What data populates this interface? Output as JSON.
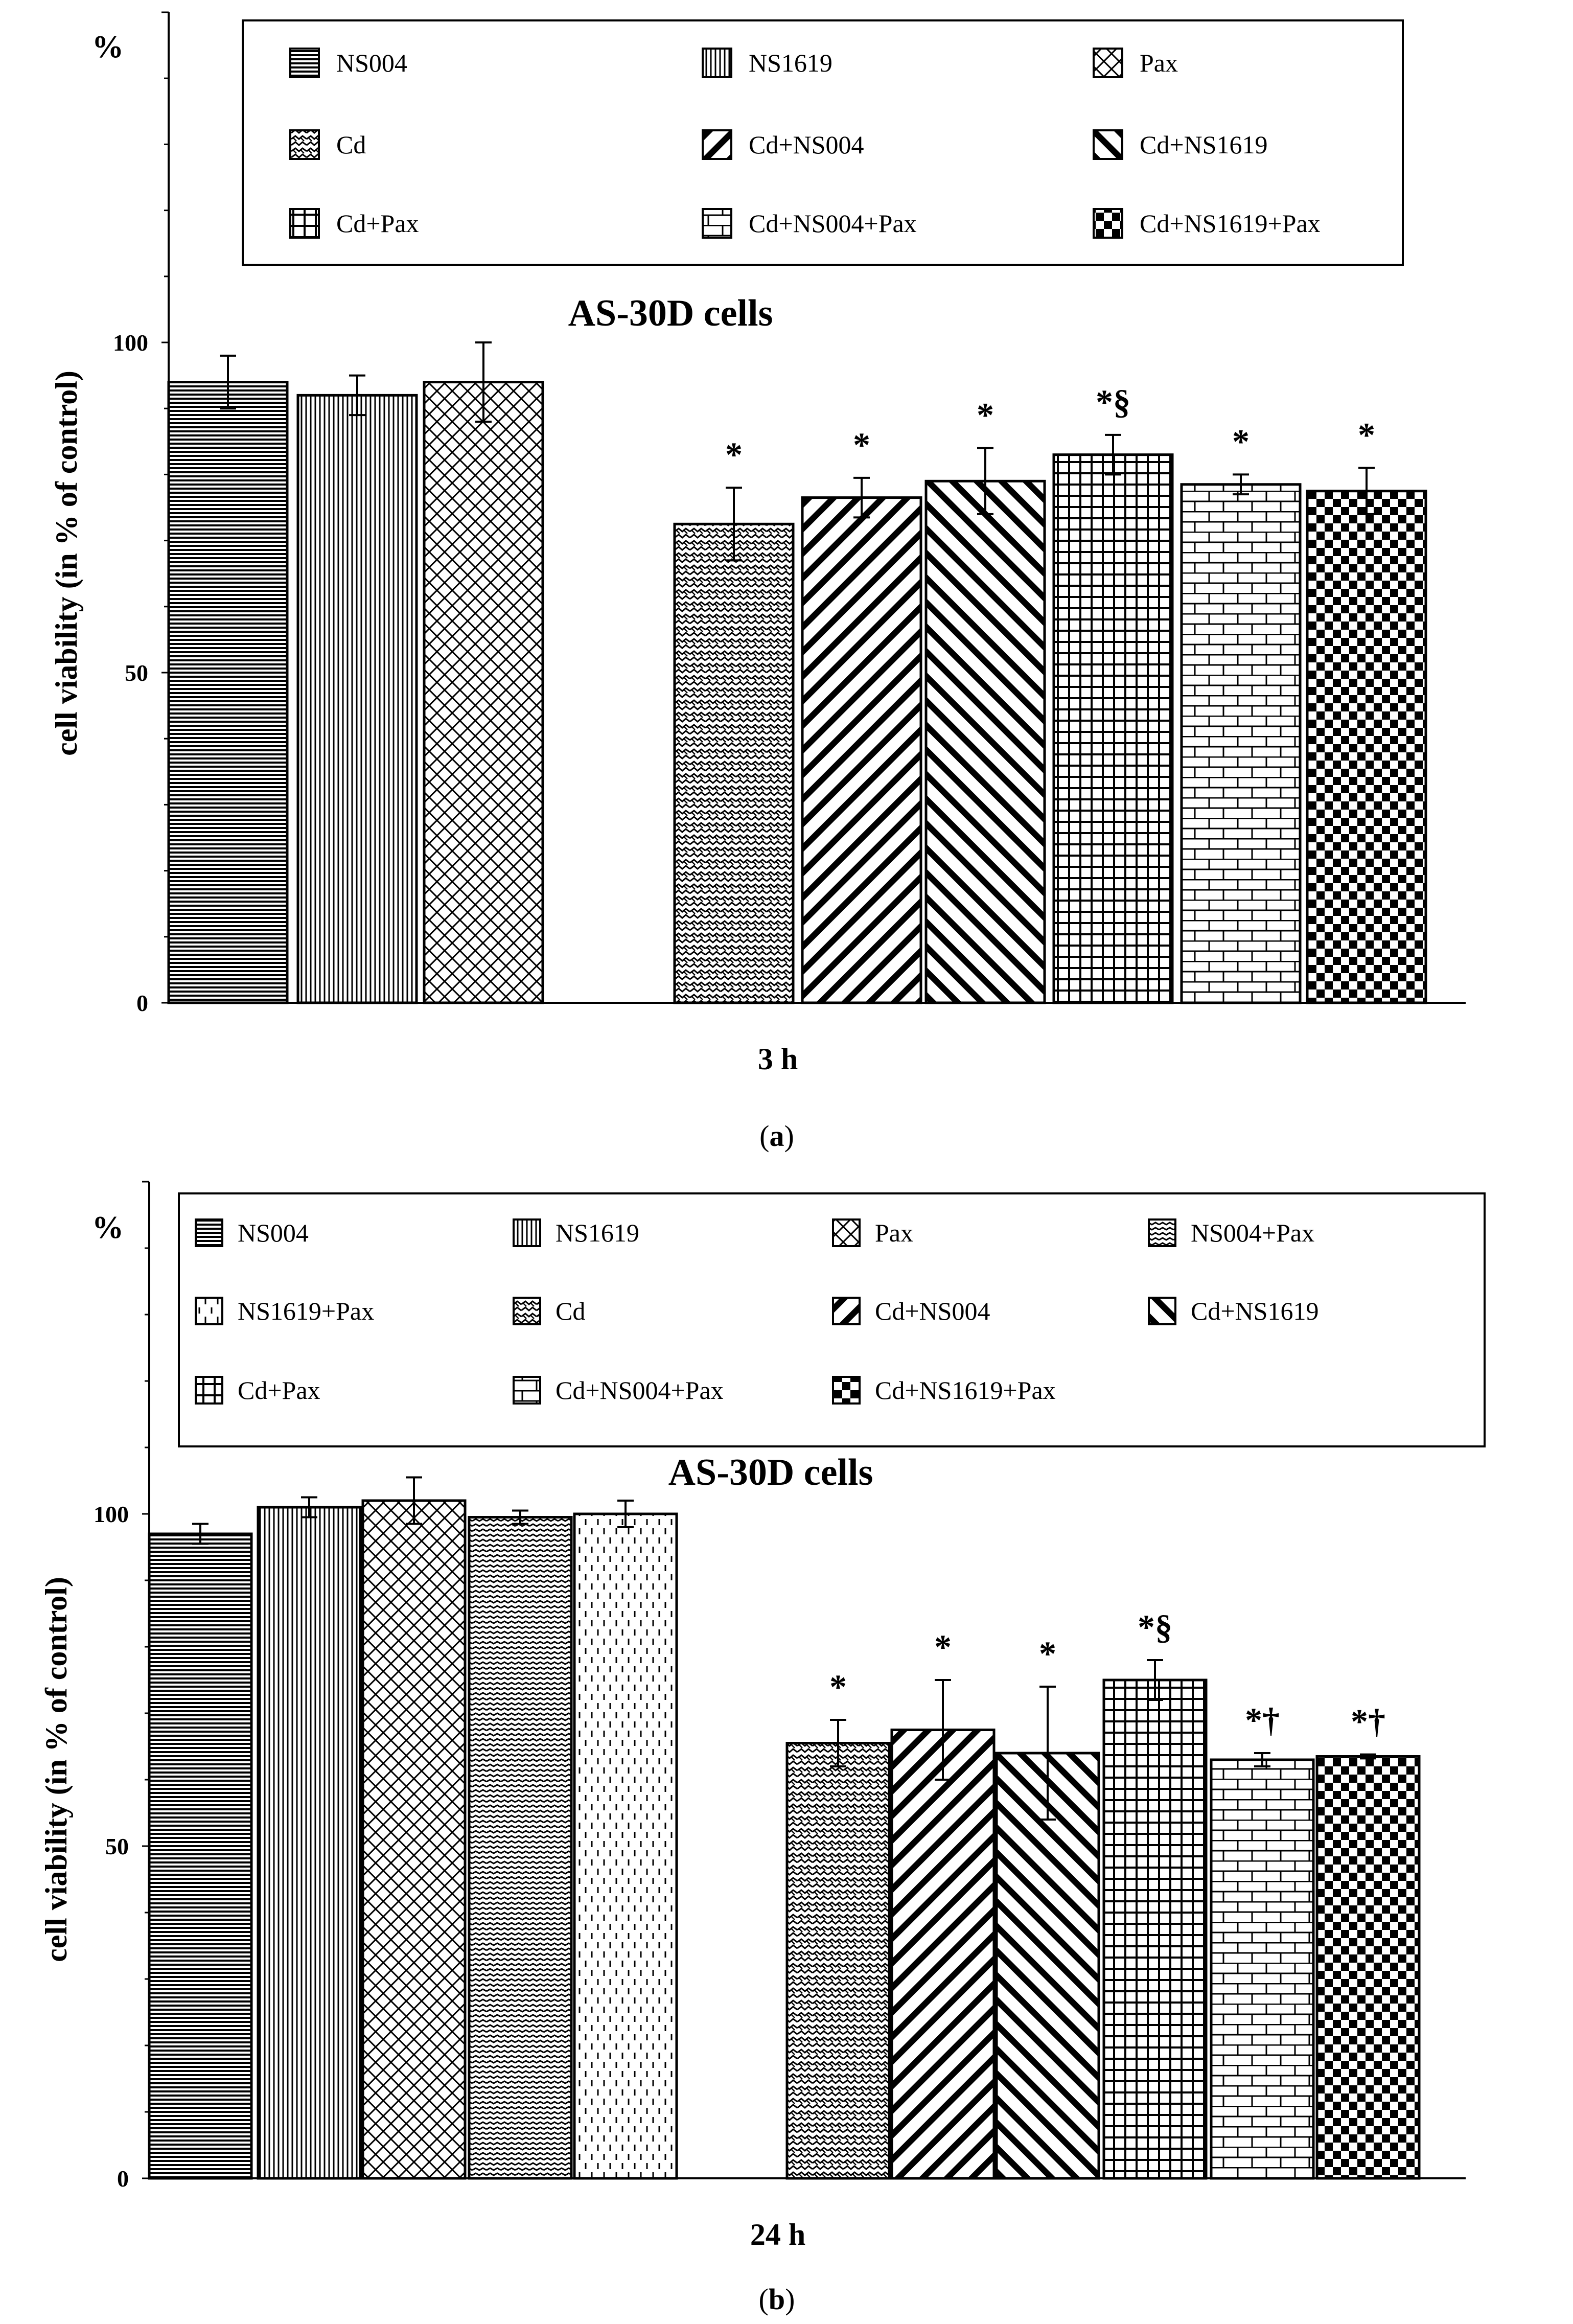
{
  "chart_data": [
    {
      "type": "bar",
      "caption_letter": "a",
      "title": "AS-30D cells",
      "xlabel": "3 h",
      "ylabel": "cell viability (in % of control)",
      "unit_label": "%",
      "ylim": [
        0,
        150
      ],
      "yticks": [
        0,
        50,
        100
      ],
      "legend_columns": 3,
      "series": [
        {
          "name": "NS004",
          "value": 94,
          "error": 4,
          "annotation": "",
          "pattern": "hlines"
        },
        {
          "name": "NS1619",
          "value": 92,
          "error": 3,
          "annotation": "",
          "pattern": "vlines"
        },
        {
          "name": "Pax",
          "value": 94,
          "error": 6,
          "annotation": "",
          "pattern": "crosshatch"
        },
        {
          "name": "Cd",
          "value": 72.5,
          "error": 5.5,
          "annotation": "*",
          "pattern": "zigzag"
        },
        {
          "name": "Cd+NS004",
          "value": 76.5,
          "error": 3,
          "annotation": "*",
          "pattern": "downdiag"
        },
        {
          "name": "Cd+NS1619",
          "value": 79,
          "error": 5,
          "annotation": "*",
          "pattern": "updiag"
        },
        {
          "name": "Cd+Pax",
          "value": 83,
          "error": 3,
          "annotation": "*§",
          "pattern": "grid"
        },
        {
          "name": "Cd+NS004+Pax",
          "value": 78.5,
          "error": 1.5,
          "annotation": "*",
          "pattern": "brick"
        },
        {
          "name": "Cd+NS1619+Pax",
          "value": 77.5,
          "error": 3.5,
          "annotation": "*",
          "pattern": "checker"
        }
      ]
    },
    {
      "type": "bar",
      "caption_letter": "b",
      "title": "AS-30D cells",
      "xlabel": "24 h",
      "ylabel": "cell viability (in % of control)",
      "unit_label": "%",
      "ylim": [
        0,
        150
      ],
      "yticks": [
        0,
        50,
        100
      ],
      "legend_columns": 4,
      "series": [
        {
          "name": "NS004",
          "value": 97,
          "error": 1.5,
          "annotation": "",
          "pattern": "hlines"
        },
        {
          "name": "NS1619",
          "value": 101,
          "error": 1.5,
          "annotation": "",
          "pattern": "vlines"
        },
        {
          "name": "Pax",
          "value": 102,
          "error": 3.5,
          "annotation": "",
          "pattern": "crosshatch"
        },
        {
          "name": "NS004+Pax",
          "value": 99.5,
          "error": 1,
          "annotation": "",
          "pattern": "wave"
        },
        {
          "name": "NS1619+Pax",
          "value": 100,
          "error": 2,
          "annotation": "",
          "pattern": "dashes"
        },
        {
          "name": "Cd",
          "value": 65.5,
          "error": 3.5,
          "annotation": "*",
          "pattern": "zigzag"
        },
        {
          "name": "Cd+NS004",
          "value": 67.5,
          "error": 7.5,
          "annotation": "*",
          "pattern": "downdiag"
        },
        {
          "name": "Cd+NS1619",
          "value": 64,
          "error": 10,
          "annotation": "*",
          "pattern": "updiag"
        },
        {
          "name": "Cd+Pax",
          "value": 75,
          "error": 3,
          "annotation": "*§",
          "pattern": "grid"
        },
        {
          "name": "Cd+NS004+Pax",
          "value": 63,
          "error": 1,
          "annotation": "*†",
          "pattern": "brick"
        },
        {
          "name": "Cd+NS1619+Pax",
          "value": 63.5,
          "error": 0.3,
          "annotation": "*†",
          "pattern": "checker"
        }
      ]
    }
  ]
}
